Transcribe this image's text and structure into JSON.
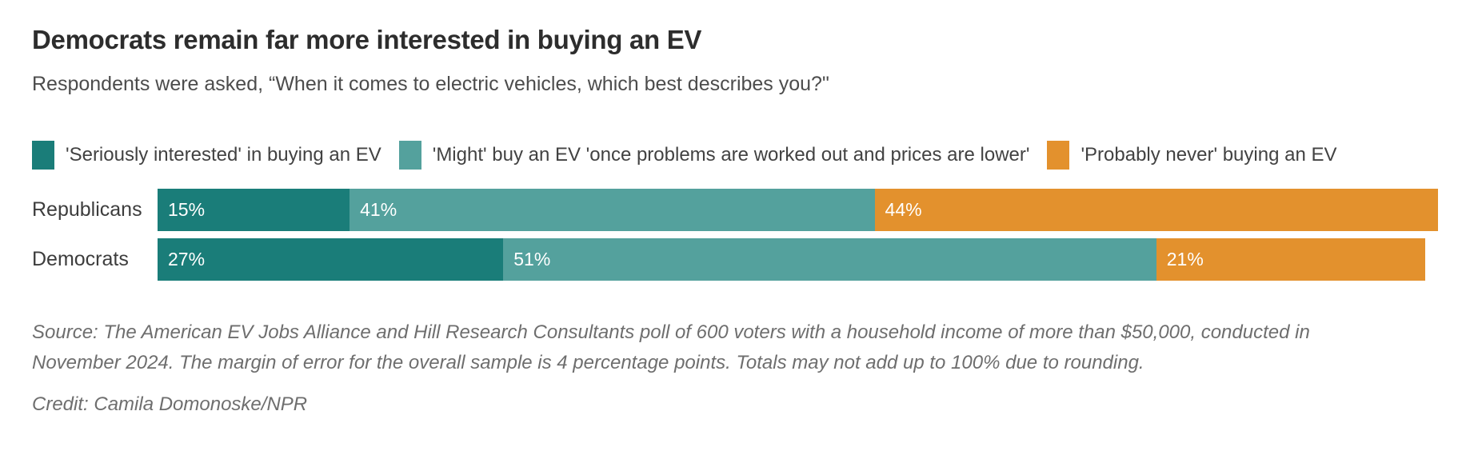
{
  "header": {
    "title": "Democrats remain far more interested in buying an EV",
    "subtitle": "Respondents were asked, “When it comes to electric vehicles, which best describes you?\""
  },
  "chart_data": {
    "type": "bar",
    "stacked": true,
    "orientation": "horizontal",
    "title": "Democrats remain far more interested in buying an EV",
    "categories": [
      "Republicans",
      "Democrats"
    ],
    "series": [
      {
        "name": "'Seriously interested' in buying an EV",
        "color": "#1a7d79",
        "values": [
          15,
          27
        ]
      },
      {
        "name": "'Might' buy an EV 'once problems are worked out and prices are lower'",
        "color": "#54a19d",
        "values": [
          41,
          51
        ]
      },
      {
        "name": "'Probably never' buying an EV",
        "color": "#e3912d",
        "values": [
          44,
          21
        ]
      }
    ],
    "value_suffix": "%",
    "xlim": [
      0,
      100
    ],
    "grid": false,
    "legend_position": "top",
    "value_labels": "inside-start",
    "value_label_color": "#ffffff"
  },
  "footer": {
    "source_lines": [
      "Source: The American EV Jobs Alliance and Hill Research Consultants poll of 600 voters with a household income of more than $50,000, conducted in",
      "November 2024. The margin of error for the overall sample is 4 percentage points. Totals may not add up to 100% due to rounding."
    ],
    "credit": "Credit: Camila Domonoske/NPR"
  }
}
